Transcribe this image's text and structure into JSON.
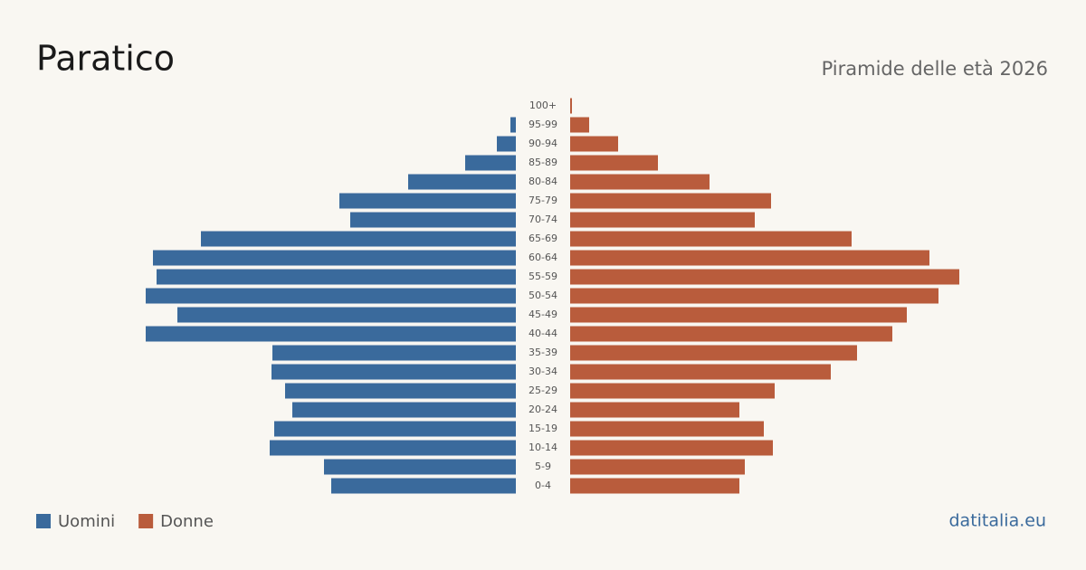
{
  "chart_data": {
    "type": "pyramid",
    "title": "Paratico",
    "subtitle": "Piramide delle età 2026",
    "source": "datitalia.eu",
    "categories": [
      "100+",
      "95-99",
      "90-94",
      "85-89",
      "80-84",
      "75-79",
      "70-74",
      "65-69",
      "60-64",
      "55-59",
      "50-54",
      "45-49",
      "40-44",
      "35-39",
      "30-34",
      "25-29",
      "20-24",
      "15-19",
      "10-14",
      "5-9",
      "0-4"
    ],
    "series": [
      {
        "name": "Uomini",
        "color": "#3a6a9c",
        "values": [
          0,
          6,
          21,
          56,
          119,
          195,
          183,
          348,
          401,
          397,
          409,
          374,
          409,
          269,
          270,
          255,
          247,
          267,
          272,
          212,
          204
        ]
      },
      {
        "name": "Donne",
        "color": "#b95c3c",
        "values": [
          2,
          21,
          53,
          97,
          154,
          222,
          204,
          311,
          397,
          430,
          407,
          372,
          356,
          317,
          288,
          226,
          187,
          214,
          224,
          193,
          187
        ]
      }
    ]
  }
}
